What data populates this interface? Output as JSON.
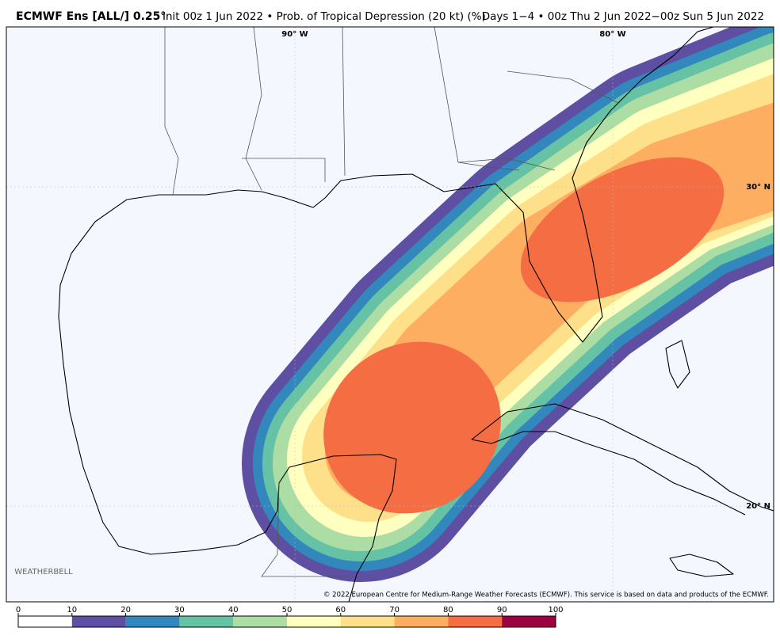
{
  "header": {
    "title_bold": "ECMWF Ens [ALL/] 0.25°",
    "title_rest": "Init 00z 1 Jun 2022 • Prob. of Tropical Depression (20 kt) (%)",
    "valid": "Days 1−4 • 00z Thu 2 Jun 2022−00z Sun 5 Jun 2022"
  },
  "map": {
    "lon_labels": [
      "90° W",
      "80° W"
    ],
    "lat_labels": [
      "30° N",
      "20° N"
    ],
    "copyright": "© 2022 European Centre for Medium-Range Weather Forecasts (ECMWF). This service is based on data and products of the ECMWF.",
    "logo": "WEATHERBELL"
  },
  "colorbar": {
    "ticks": [
      0,
      10,
      20,
      30,
      40,
      50,
      60,
      70,
      80,
      90,
      100
    ],
    "colors": [
      "#ffffff",
      "#5e4fa2",
      "#3288bd",
      "#66c2a5",
      "#abdda4",
      "#ffffbf",
      "#fee08b",
      "#fdae61",
      "#f46d43",
      "#9e0142"
    ]
  }
}
